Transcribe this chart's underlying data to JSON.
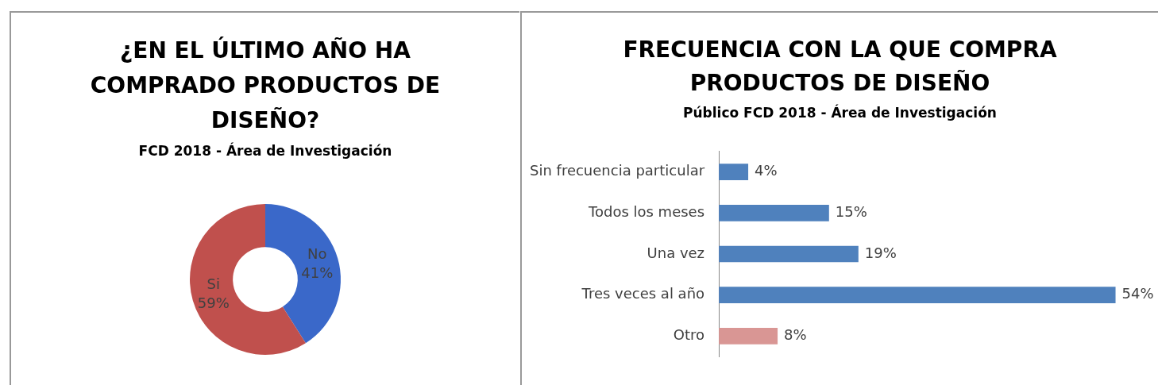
{
  "chart_data": [
    {
      "type": "donut",
      "title": "¿EN EL ÚLTIMO AÑO HA COMPRADO PRODUCTOS DE DISEÑO?",
      "subtitle": "FCD 2018 - Área de Investigación",
      "categories": [
        "No",
        "Si"
      ],
      "values": [
        41,
        59
      ],
      "colors": [
        "#3a68c9",
        "#c0504d"
      ],
      "value_labels": [
        "41%",
        "59%"
      ],
      "legend": false
    },
    {
      "type": "bar",
      "orientation": "horizontal",
      "title": "FRECUENCIA CON LA QUE COMPRA PRODUCTOS DE DISEÑO",
      "subtitle": "Público FCD 2018 - Área de Investigación",
      "categories": [
        "Sin frecuencia particular",
        "Todos los meses",
        "Una vez",
        "Tres veces al año",
        "Otro"
      ],
      "values": [
        4,
        15,
        19,
        54,
        8
      ],
      "colors": [
        "#4f81bd",
        "#4f81bd",
        "#4f81bd",
        "#4f81bd",
        "#d99694"
      ],
      "value_labels": [
        "4%",
        "15%",
        "19%",
        "54%",
        "8%"
      ],
      "legend": false
    }
  ]
}
